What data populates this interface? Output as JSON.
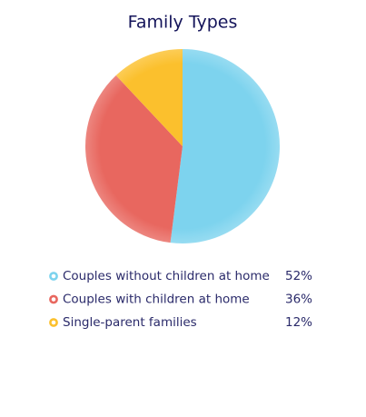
{
  "chart_data": {
    "type": "pie",
    "title": "Family Types",
    "categories": [
      "Couples without children at home",
      "Couples with children at home",
      "Single-parent families"
    ],
    "values": [
      52,
      36,
      12
    ],
    "value_labels": [
      "52%",
      "36%",
      "12%"
    ],
    "colors": [
      "#7dd3ee",
      "#e8675f",
      "#fbc02d"
    ]
  }
}
